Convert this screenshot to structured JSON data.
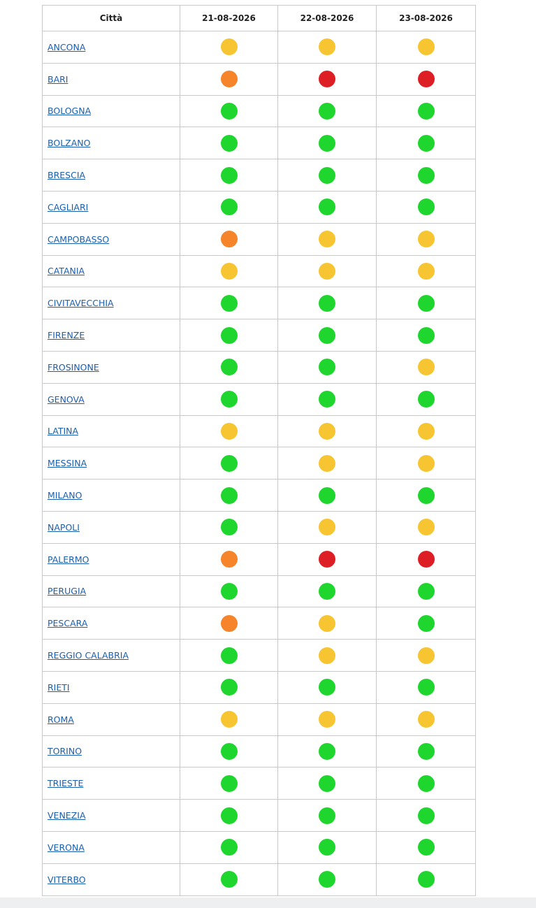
{
  "table": {
    "columns": [
      "Città",
      "21-08-2026",
      "22-08-2026",
      "23-08-2026"
    ],
    "colors": {
      "green": "#1fd62e",
      "yellow": "#f7c531",
      "orange": "#f5842a",
      "red": "#dd1f25"
    },
    "rows": [
      {
        "city": "ANCONA",
        "levels": [
          "yellow",
          "yellow",
          "yellow"
        ]
      },
      {
        "city": "BARI",
        "levels": [
          "orange",
          "red",
          "red"
        ]
      },
      {
        "city": "BOLOGNA",
        "levels": [
          "green",
          "green",
          "green"
        ]
      },
      {
        "city": "BOLZANO",
        "levels": [
          "green",
          "green",
          "green"
        ]
      },
      {
        "city": "BRESCIA",
        "levels": [
          "green",
          "green",
          "green"
        ]
      },
      {
        "city": "CAGLIARI",
        "levels": [
          "green",
          "green",
          "green"
        ]
      },
      {
        "city": "CAMPOBASSO",
        "levels": [
          "orange",
          "yellow",
          "yellow"
        ]
      },
      {
        "city": "CATANIA",
        "levels": [
          "yellow",
          "yellow",
          "yellow"
        ]
      },
      {
        "city": "CIVITAVECCHIA",
        "levels": [
          "green",
          "green",
          "green"
        ]
      },
      {
        "city": "FIRENZE",
        "levels": [
          "green",
          "green",
          "green"
        ]
      },
      {
        "city": "FROSINONE",
        "levels": [
          "green",
          "green",
          "yellow"
        ]
      },
      {
        "city": "GENOVA",
        "levels": [
          "green",
          "green",
          "green"
        ]
      },
      {
        "city": "LATINA",
        "levels": [
          "yellow",
          "yellow",
          "yellow"
        ]
      },
      {
        "city": "MESSINA",
        "levels": [
          "green",
          "yellow",
          "yellow"
        ]
      },
      {
        "city": "MILANO",
        "levels": [
          "green",
          "green",
          "green"
        ]
      },
      {
        "city": "NAPOLI",
        "levels": [
          "green",
          "yellow",
          "yellow"
        ]
      },
      {
        "city": "PALERMO",
        "levels": [
          "orange",
          "red",
          "red"
        ]
      },
      {
        "city": "PERUGIA",
        "levels": [
          "green",
          "green",
          "green"
        ]
      },
      {
        "city": "PESCARA",
        "levels": [
          "orange",
          "yellow",
          "green"
        ]
      },
      {
        "city": "REGGIO CALABRIA",
        "levels": [
          "green",
          "yellow",
          "yellow"
        ]
      },
      {
        "city": "RIETI",
        "levels": [
          "green",
          "green",
          "green"
        ]
      },
      {
        "city": "ROMA",
        "levels": [
          "yellow",
          "yellow",
          "yellow"
        ]
      },
      {
        "city": "TORINO",
        "levels": [
          "green",
          "green",
          "green"
        ]
      },
      {
        "city": "TRIESTE",
        "levels": [
          "green",
          "green",
          "green"
        ]
      },
      {
        "city": "VENEZIA",
        "levels": [
          "green",
          "green",
          "green"
        ]
      },
      {
        "city": "VERONA",
        "levels": [
          "green",
          "green",
          "green"
        ]
      },
      {
        "city": "VITERBO",
        "levels": [
          "green",
          "green",
          "green"
        ]
      }
    ]
  }
}
